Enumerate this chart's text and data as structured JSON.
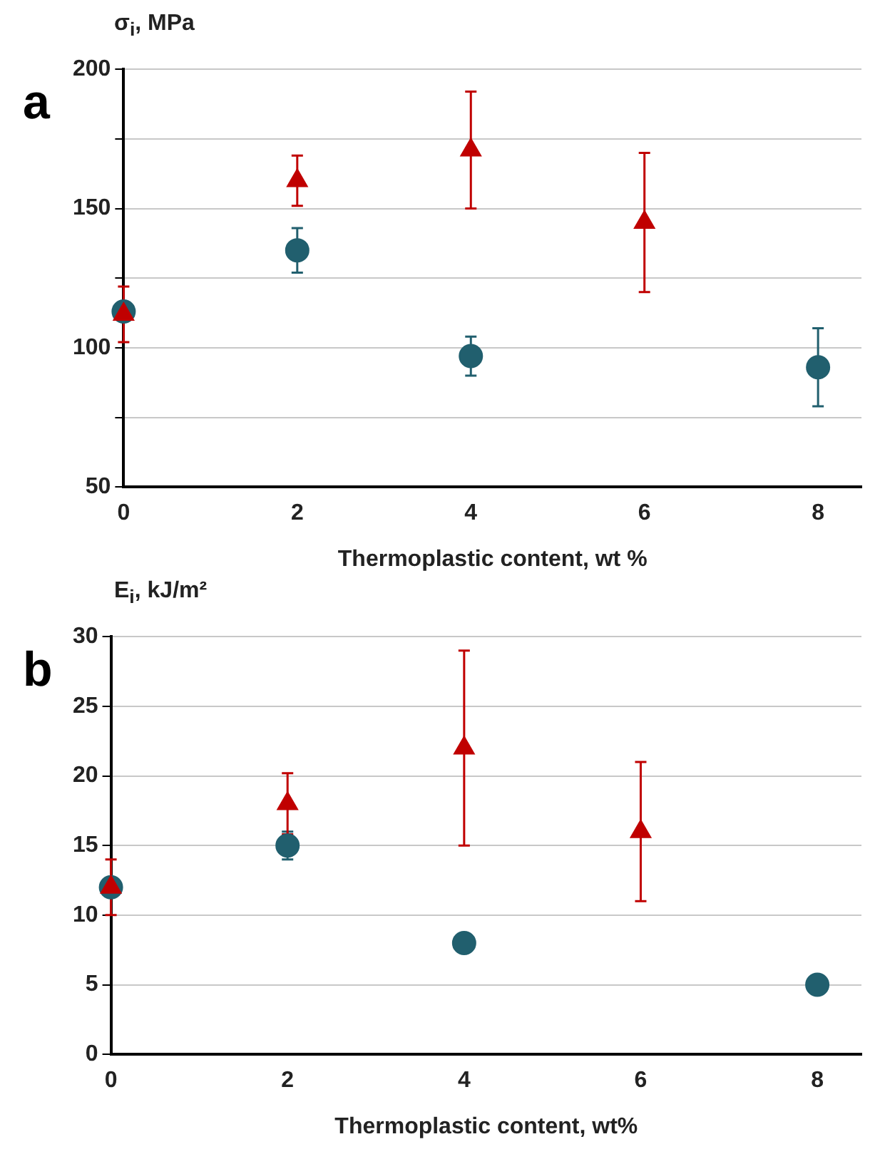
{
  "chart_data": [
    {
      "type": "scatter",
      "title": "a",
      "ylabel": "σ$_{i}$, MPa",
      "xlabel": "Thermoplastic content, wt %",
      "x": [
        0,
        2,
        4,
        6,
        8
      ],
      "xlim": [
        0,
        8.5
      ],
      "xticks": [
        0,
        2,
        4,
        6,
        8
      ],
      "ylim": [
        50,
        200
      ],
      "yticks": [
        50,
        {
          "value": 75,
          "label": null
        },
        100,
        {
          "value": 125,
          "label": null
        },
        150,
        {
          "value": 175,
          "label": null
        },
        200
      ],
      "grid": "y",
      "series": [
        {
          "color": "#215f6e",
          "marker": "circle",
          "values": [
            113,
            135,
            97,
            null,
            93
          ],
          "errors": [
            null,
            8,
            7,
            null,
            14
          ]
        },
        {
          "color": "#c00000",
          "marker": "triangle",
          "values": [
            112,
            160,
            171,
            145,
            null
          ],
          "errors": [
            10,
            9,
            21,
            25,
            null
          ]
        }
      ]
    },
    {
      "type": "scatter",
      "title": "b",
      "ylabel": "E$_{i}$, kJ/m²",
      "xlabel": "Thermoplastic content, wt%",
      "x": [
        0,
        2,
        4,
        6,
        8
      ],
      "xlim": [
        0,
        8.5
      ],
      "xticks": [
        0,
        2,
        4,
        6,
        8
      ],
      "ylim": [
        0,
        30
      ],
      "yticks": [
        0,
        5,
        10,
        15,
        20,
        25,
        30
      ],
      "grid": "y",
      "series": [
        {
          "color": "#215f6e",
          "marker": "circle",
          "values": [
            12,
            15,
            8,
            null,
            5
          ],
          "errors": [
            null,
            1,
            null,
            null,
            null
          ]
        },
        {
          "color": "#c00000",
          "marker": "triangle",
          "values": [
            12,
            18,
            22,
            16,
            null
          ],
          "errors": [
            2,
            2.2,
            7,
            5,
            null
          ]
        }
      ]
    }
  ]
}
